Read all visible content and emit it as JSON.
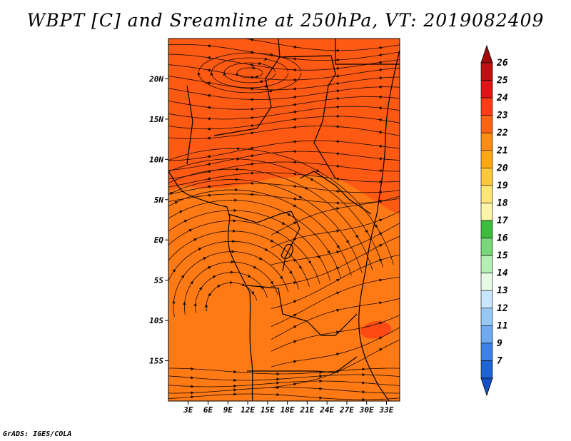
{
  "title": "WBPT [C] and Sreamline at 250hPa, VT: 2019082409",
  "credit": "GrADS: IGES/COLA",
  "map": {
    "lon_range": [
      0,
      35
    ],
    "lat_range": [
      -20,
      25
    ],
    "lat_ticks": [
      {
        "value": 20,
        "label": "20N"
      },
      {
        "value": 15,
        "label": "15N"
      },
      {
        "value": 10,
        "label": "10N"
      },
      {
        "value": 5,
        "label": "5N"
      },
      {
        "value": 0,
        "label": "EQ"
      },
      {
        "value": -5,
        "label": "5S"
      },
      {
        "value": -10,
        "label": "10S"
      },
      {
        "value": -15,
        "label": "15S"
      }
    ],
    "lon_ticks": [
      {
        "value": 3,
        "label": "3E"
      },
      {
        "value": 6,
        "label": "6E"
      },
      {
        "value": 9,
        "label": "9E"
      },
      {
        "value": 12,
        "label": "12E"
      },
      {
        "value": 15,
        "label": "15E"
      },
      {
        "value": 18,
        "label": "18E"
      },
      {
        "value": 21,
        "label": "21E"
      },
      {
        "value": 24,
        "label": "24E"
      },
      {
        "value": 27,
        "label": "27E"
      },
      {
        "value": 30,
        "label": "30E"
      },
      {
        "value": 33,
        "label": "33E"
      }
    ],
    "fill_colors": {
      "north": "#ff5a14",
      "south": "#ff7a14",
      "warm_patch": "#ff4a14"
    }
  },
  "colorbar": {
    "levels": [
      {
        "label": "26",
        "color": "#c01010"
      },
      {
        "label": "25",
        "color": "#e01414"
      },
      {
        "label": "24",
        "color": "#ff3c14"
      },
      {
        "label": "23",
        "color": "#ff6414"
      },
      {
        "label": "22",
        "color": "#ff8c14"
      },
      {
        "label": "21",
        "color": "#ffa814"
      },
      {
        "label": "20",
        "color": "#ffc83c"
      },
      {
        "label": "19",
        "color": "#ffe678"
      },
      {
        "label": "18",
        "color": "#fff5a8"
      },
      {
        "label": "17",
        "color": "#3cbe3c"
      },
      {
        "label": "16",
        "color": "#78d778"
      },
      {
        "label": "15",
        "color": "#b4f0b4"
      },
      {
        "label": "14",
        "color": "#e6fae6"
      },
      {
        "label": "13",
        "color": "#c8e6ff"
      },
      {
        "label": "12",
        "color": "#96c8f5"
      },
      {
        "label": "11",
        "color": "#6eaaf0"
      },
      {
        "label": "9",
        "color": "#3c82e6"
      },
      {
        "label": "7",
        "color": "#1e64d2"
      }
    ],
    "top_color": "#a00a0a",
    "bottom_color": "#1450c8"
  }
}
